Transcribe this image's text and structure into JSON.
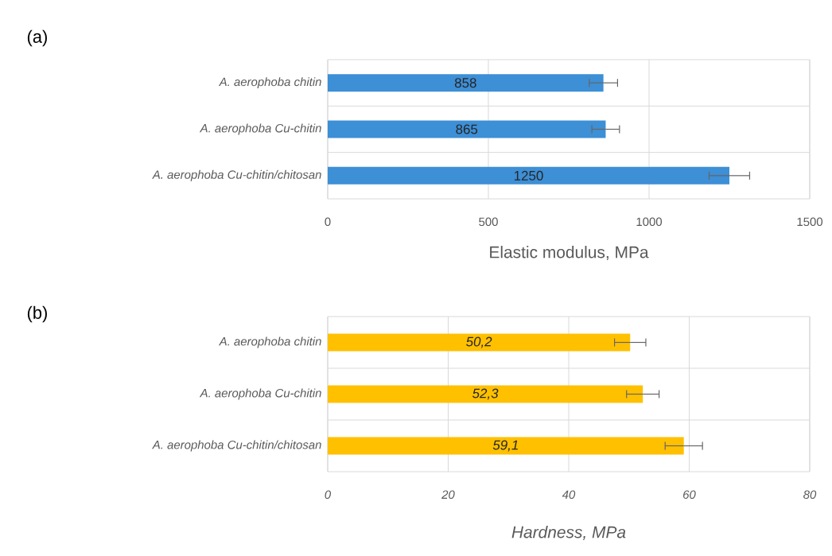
{
  "chart_data": [
    {
      "type": "bar",
      "orientation": "horizontal",
      "annotations": [
        "(a)"
      ],
      "xlabel": "Elastic modulus, MPa",
      "categories": [
        "A. aerophoba chitin",
        "A. aerophoba Cu-chitin",
        "A. aerophoba Cu-chitin/chitosan"
      ],
      "values": [
        858,
        865,
        1250
      ],
      "errors": [
        44,
        43,
        63
      ],
      "color": "#3d8fd6",
      "xlim": [
        0,
        1500
      ],
      "xticks": [
        0,
        500,
        1000,
        1500
      ],
      "grid": true,
      "data_labels": true
    },
    {
      "type": "bar",
      "orientation": "horizontal",
      "annotations": [
        "(b)"
      ],
      "xlabel": "Hardness, MPa",
      "categories": [
        "A. aerophoba chitin",
        "A. aerophoba Cu-chitin",
        "A. aerophoba Cu-chitin/chitosan"
      ],
      "values": [
        50.2,
        52.3,
        59.1
      ],
      "errors": [
        2.6,
        2.7,
        3.1
      ],
      "color": "#ffc000",
      "value_labels": [
        "50,2",
        "52,3",
        "59,1"
      ],
      "xlim": [
        0,
        80
      ],
      "xticks": [
        0,
        20,
        40,
        60,
        80
      ],
      "grid": true
    }
  ]
}
